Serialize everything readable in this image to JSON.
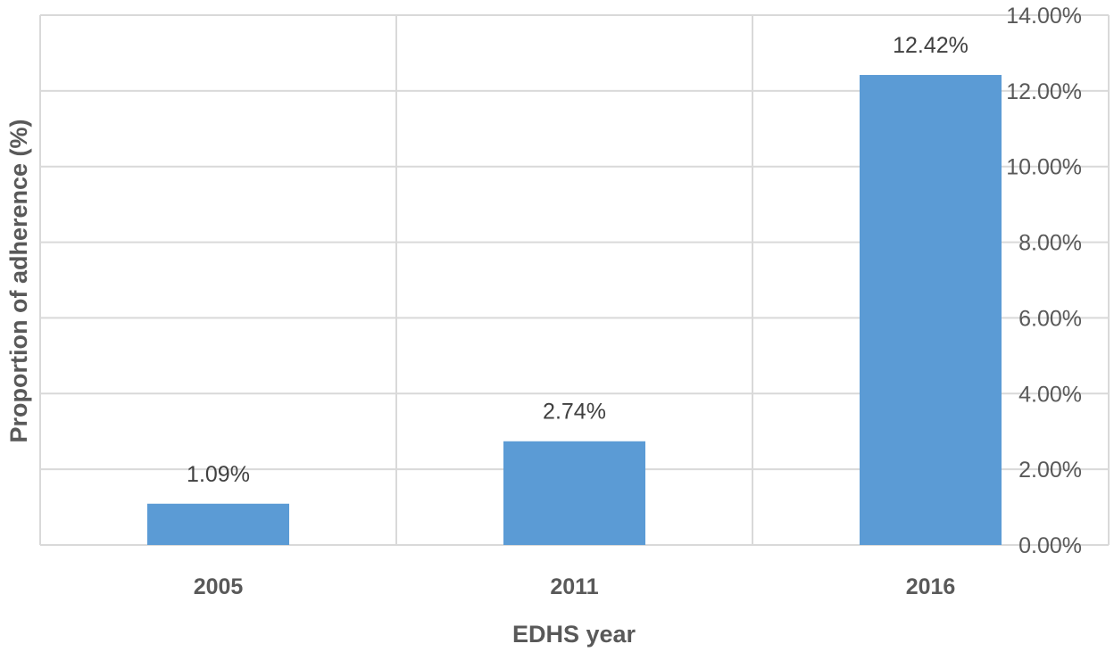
{
  "chart_data": {
    "type": "bar",
    "categories": [
      "2005",
      "2011",
      "2016"
    ],
    "values": [
      1.09,
      2.74,
      12.42
    ],
    "data_labels": [
      "1.09%",
      "2.74%",
      "12.42%"
    ],
    "title": "",
    "xlabel": "EDHS year",
    "ylabel": "Proportion of adherence (%)",
    "ylim": [
      0,
      14
    ],
    "yticks": [
      0,
      2,
      4,
      6,
      8,
      10,
      12,
      14
    ],
    "ytick_labels": [
      "0.00%",
      "2.00%",
      "4.00%",
      "6.00%",
      "8.00%",
      "10.00%",
      "12.00%",
      "14.00%"
    ],
    "y_axis_side": "right",
    "grid": true,
    "bar_color": "#5B9BD5",
    "grid_color": "#D9D9D9"
  }
}
